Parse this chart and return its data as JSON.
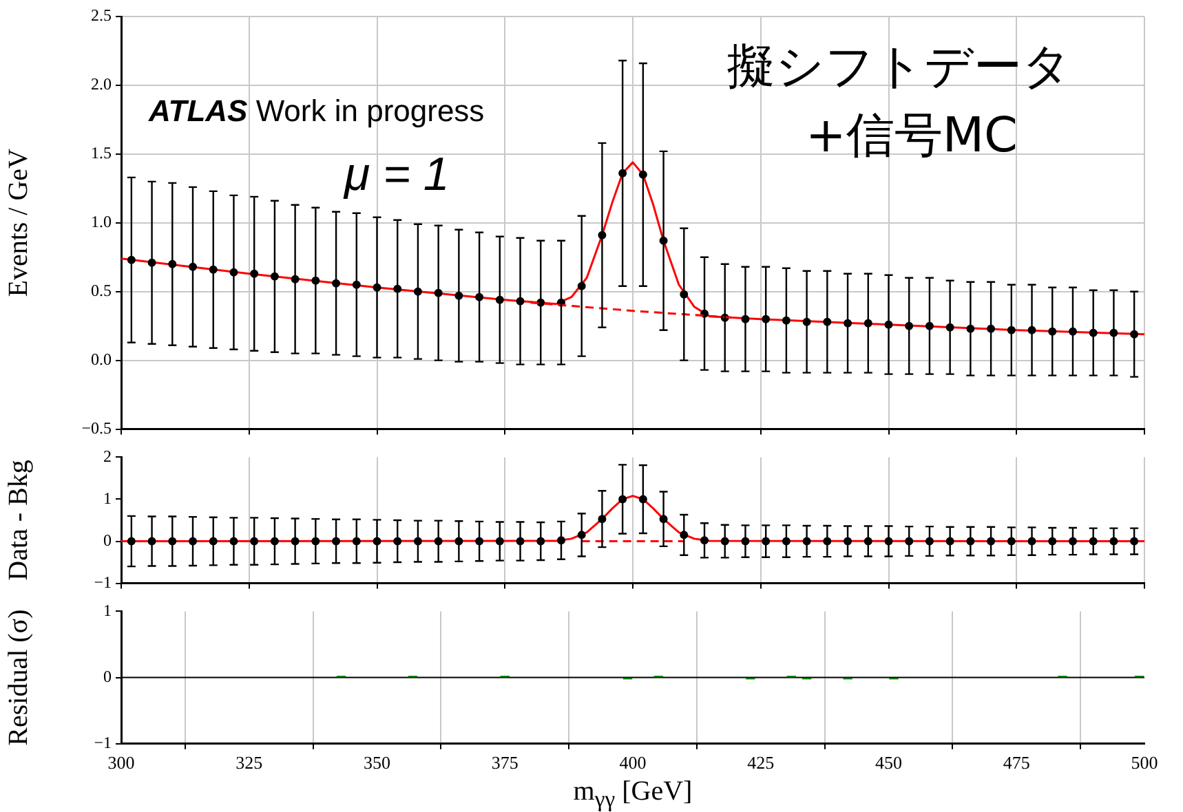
{
  "chart_data": [
    {
      "type": "scatter",
      "ylabel": "Events / GeV",
      "xlim": [
        300,
        500
      ],
      "xticks": [
        300,
        325,
        350,
        375,
        400,
        425,
        450,
        475,
        500
      ],
      "ylim": [
        -0.5,
        2.5
      ],
      "yticks": [
        {
          "value": -0.5,
          "label": "−0.5"
        },
        {
          "value": 0,
          "label": "0.0"
        },
        {
          "value": 0.5,
          "label": "0.5"
        },
        {
          "value": 1,
          "label": "1.0"
        },
        {
          "value": 1.5,
          "label": "1.5"
        },
        {
          "value": 2,
          "label": "2.0"
        },
        {
          "value": 2.5,
          "label": "2.5"
        }
      ],
      "grid": true,
      "tick_labels": "y",
      "legend": false,
      "annotations": [
        "ATLAS Work in progress",
        "μ = 1",
        "擬シフトデータ",
        "+信号MC"
      ],
      "x": [
        302,
        306,
        310,
        314,
        318,
        322,
        326,
        330,
        334,
        338,
        342,
        346,
        350,
        354,
        358,
        362,
        366,
        370,
        374,
        378,
        382,
        386,
        390,
        394,
        398,
        402,
        406,
        410,
        414,
        418,
        422,
        426,
        430,
        434,
        438,
        442,
        446,
        450,
        454,
        458,
        462,
        466,
        470,
        474,
        478,
        482,
        486,
        490,
        494,
        498
      ],
      "series": [
        {
          "color": "#000000",
          "marker": "circle",
          "values": [
            0.73,
            0.71,
            0.7,
            0.68,
            0.66,
            0.64,
            0.63,
            0.61,
            0.59,
            0.58,
            0.56,
            0.55,
            0.53,
            0.52,
            0.5,
            0.49,
            0.47,
            0.46,
            0.44,
            0.43,
            0.42,
            0.42,
            0.54,
            0.91,
            1.36,
            1.35,
            0.87,
            0.48,
            0.34,
            0.31,
            0.3,
            0.3,
            0.29,
            0.28,
            0.28,
            0.27,
            0.27,
            0.26,
            0.25,
            0.25,
            0.24,
            0.23,
            0.23,
            0.22,
            0.22,
            0.21,
            0.21,
            0.2,
            0.2,
            0.19
          ],
          "errors": [
            0.6,
            0.59,
            0.59,
            0.58,
            0.57,
            0.56,
            0.56,
            0.55,
            0.54,
            0.53,
            0.52,
            0.52,
            0.51,
            0.5,
            0.49,
            0.49,
            0.48,
            0.47,
            0.46,
            0.46,
            0.45,
            0.45,
            0.51,
            0.67,
            0.82,
            0.81,
            0.65,
            0.48,
            0.41,
            0.39,
            0.38,
            0.38,
            0.38,
            0.37,
            0.37,
            0.36,
            0.36,
            0.36,
            0.35,
            0.35,
            0.34,
            0.34,
            0.34,
            0.33,
            0.33,
            0.32,
            0.32,
            0.31,
            0.31,
            0.31
          ]
        },
        {
          "type": "line",
          "color": "#ff0000",
          "line_style": "solid",
          "x": [
            300,
            325,
            350,
            375,
            385,
            388,
            391,
            394,
            396,
            398,
            400,
            402,
            404,
            406,
            409,
            412,
            415,
            425,
            450,
            475,
            500
          ],
          "values": [
            0.74,
            0.63,
            0.53,
            0.44,
            0.41,
            0.46,
            0.6,
            0.91,
            1.15,
            1.36,
            1.44,
            1.35,
            1.13,
            0.87,
            0.55,
            0.39,
            0.32,
            0.3,
            0.26,
            0.22,
            0.19
          ]
        },
        {
          "type": "line",
          "color": "#ff0000",
          "line_style": "dashed",
          "x": [
            380,
            400,
            420
          ],
          "values": [
            0.42,
            0.36,
            0.31
          ]
        }
      ]
    },
    {
      "type": "scatter",
      "ylabel": "Data - Bkg",
      "xlim": [
        300,
        500
      ],
      "xticks": [
        300,
        325,
        350,
        375,
        400,
        425,
        450,
        475,
        500
      ],
      "ylim": [
        -1,
        2
      ],
      "yticks": [
        {
          "value": -1,
          "label": "−1"
        },
        0,
        1,
        2
      ],
      "grid": "x",
      "tick_labels": "y",
      "legend": false,
      "x": [
        302,
        306,
        310,
        314,
        318,
        322,
        326,
        330,
        334,
        338,
        342,
        346,
        350,
        354,
        358,
        362,
        366,
        370,
        374,
        378,
        382,
        386,
        390,
        394,
        398,
        402,
        406,
        410,
        414,
        418,
        422,
        426,
        430,
        434,
        438,
        442,
        446,
        450,
        454,
        458,
        462,
        466,
        470,
        474,
        478,
        482,
        486,
        490,
        494,
        498
      ],
      "series": [
        {
          "color": "#000000",
          "marker": "circle",
          "values": [
            0,
            0,
            0,
            0,
            0,
            0,
            0,
            0,
            0,
            0,
            0,
            0,
            0,
            0,
            0,
            0,
            0,
            0,
            0,
            0,
            0,
            0.02,
            0.15,
            0.53,
            1.0,
            1.0,
            0.53,
            0.15,
            0.02,
            0,
            0,
            0,
            0,
            0,
            0,
            0,
            0,
            0,
            0,
            0,
            0,
            0,
            0,
            0,
            0,
            0,
            0,
            0,
            0,
            0
          ],
          "errors": [
            0.6,
            0.59,
            0.59,
            0.58,
            0.57,
            0.56,
            0.56,
            0.55,
            0.54,
            0.53,
            0.52,
            0.52,
            0.51,
            0.5,
            0.49,
            0.49,
            0.48,
            0.47,
            0.46,
            0.46,
            0.45,
            0.45,
            0.51,
            0.67,
            0.82,
            0.81,
            0.65,
            0.48,
            0.41,
            0.39,
            0.38,
            0.38,
            0.38,
            0.37,
            0.37,
            0.36,
            0.36,
            0.36,
            0.35,
            0.35,
            0.34,
            0.34,
            0.34,
            0.33,
            0.33,
            0.32,
            0.32,
            0.31,
            0.31,
            0.31
          ]
        },
        {
          "type": "line",
          "color": "#ff0000",
          "line_style": "solid",
          "x": [
            300,
            385,
            388,
            391,
            394,
            396,
            398,
            400,
            402,
            404,
            406,
            409,
            412,
            415,
            500
          ],
          "values": [
            0,
            0.01,
            0.06,
            0.21,
            0.53,
            0.78,
            1.0,
            1.08,
            1.0,
            0.78,
            0.53,
            0.21,
            0.06,
            0.01,
            0
          ]
        },
        {
          "type": "line",
          "color": "#ff0000",
          "line_style": "dashed",
          "x": [
            390,
            410
          ],
          "values": [
            0,
            0
          ]
        }
      ]
    },
    {
      "type": "bar",
      "ylabel": "Residual (σ)",
      "xlabel": "m$_{γγ}$ [GeV]",
      "xlim": [
        300,
        500
      ],
      "xticks": [
        300,
        325,
        350,
        375,
        400,
        425,
        450,
        475,
        500
      ],
      "ylim": [
        -1,
        1
      ],
      "yticks": [
        {
          "value": -1,
          "label": "−1"
        },
        0,
        1
      ],
      "grid": "x",
      "legend": false,
      "x": [
        343,
        357,
        375,
        399,
        405,
        423,
        431,
        434,
        442,
        451,
        484,
        499
      ],
      "values": [
        0.02,
        0.02,
        0.02,
        -0.02,
        0.02,
        -0.02,
        0.02,
        -0.02,
        -0.02,
        -0.02,
        0.02,
        0.02
      ],
      "color": "#008000",
      "ref_lines": [
        {
          "axis": "y",
          "value": 0,
          "color": "#000000"
        }
      ]
    }
  ]
}
